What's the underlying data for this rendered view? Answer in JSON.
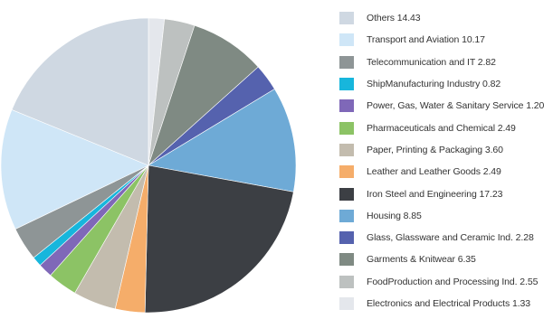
{
  "chart_data": {
    "type": "pie",
    "title": "",
    "slices": [
      {
        "label": "Others 14.43",
        "category": "Others",
        "value": 14.43,
        "color": "#cfd8e2"
      },
      {
        "label": "Transport and Aviation 10.17",
        "category": "Transport and Aviation",
        "value": 10.17,
        "color": "#cfe6f7"
      },
      {
        "label": "Telecommunication and IT 2.82",
        "category": "Telecommunication and IT",
        "value": 2.82,
        "color": "#8e9596"
      },
      {
        "label": "ShipManufacturing Industry 0.82",
        "category": "ShipManufacturing Industry",
        "value": 0.82,
        "color": "#17b6dc"
      },
      {
        "label": "Power, Gas, Water & Sanitary Service 1.20",
        "category": "Power, Gas, Water & Sanitary Service",
        "value": 1.2,
        "color": "#7f68b8"
      },
      {
        "label": "Pharmaceuticals and Chemical 2.49",
        "category": "Pharmaceuticals and Chemical",
        "value": 2.49,
        "color": "#8cc365"
      },
      {
        "label": "Paper, Printing & Packaging 3.60",
        "category": "Paper, Printing & Packaging",
        "value": 3.6,
        "color": "#c3bcae"
      },
      {
        "label": "Leather and Leather Goods 2.49",
        "category": "Leather and Leather Goods",
        "value": 2.49,
        "color": "#f5ad6a"
      },
      {
        "label": "Iron Steel and Engineering 17.23",
        "category": "Iron Steel and Engineering",
        "value": 17.23,
        "color": "#3c3f44"
      },
      {
        "label": "Housing 8.85",
        "category": "Housing",
        "value": 8.85,
        "color": "#6eaad6"
      },
      {
        "label": "Glass, Glassware and Ceramic Ind. 2.28",
        "category": "Glass, Glassware and Ceramic Ind.",
        "value": 2.28,
        "color": "#5562ae"
      },
      {
        "label": "Garments & Knitwear 6.35",
        "category": "Garments & Knitwear",
        "value": 6.35,
        "color": "#7f8a83"
      },
      {
        "label": "FoodProduction and Processing Ind. 2.55",
        "category": "FoodProduction and Processing Ind.",
        "value": 2.55,
        "color": "#bdc1c0"
      },
      {
        "label": "Electronics and Electrical Products 1.33",
        "category": "Electronics and Electrical Products",
        "value": 1.33,
        "color": "#e4e7ec"
      }
    ],
    "legend": "right",
    "start_angle_deg": 0,
    "direction": "counterclockwise-from-top-by-legend-reverse"
  }
}
